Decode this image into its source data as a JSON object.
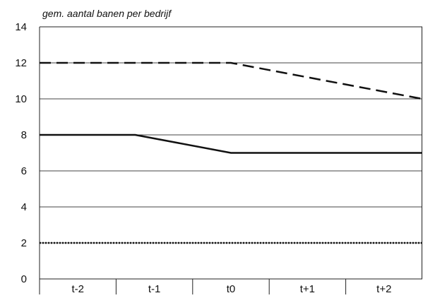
{
  "chart_data": {
    "type": "line",
    "title": "",
    "ylabel": "gem. aantal banen per bedrijf",
    "xlabel": "",
    "categories": [
      "t-2",
      "t-1",
      "t0",
      "t+1",
      "t+2"
    ],
    "ylim": [
      0,
      14
    ],
    "yticks": [
      0,
      2,
      4,
      6,
      8,
      10,
      12,
      14
    ],
    "grid": "horizontal",
    "series": [
      {
        "style": "dashed",
        "points": [
          {
            "x": "t-2",
            "y": 12
          },
          {
            "x": "t0",
            "y": 12
          },
          {
            "x": "t+2",
            "y": 10
          }
        ]
      },
      {
        "style": "solid",
        "points": [
          {
            "x": "t-2",
            "y": 8
          },
          {
            "x": "t-1",
            "y": 8
          },
          {
            "x": "t0",
            "y": 7
          },
          {
            "x": "t+2",
            "y": 7
          }
        ]
      },
      {
        "style": "dotted",
        "points": [
          {
            "x": "t-2",
            "y": 2
          },
          {
            "x": "t+2",
            "y": 2
          }
        ]
      }
    ]
  }
}
